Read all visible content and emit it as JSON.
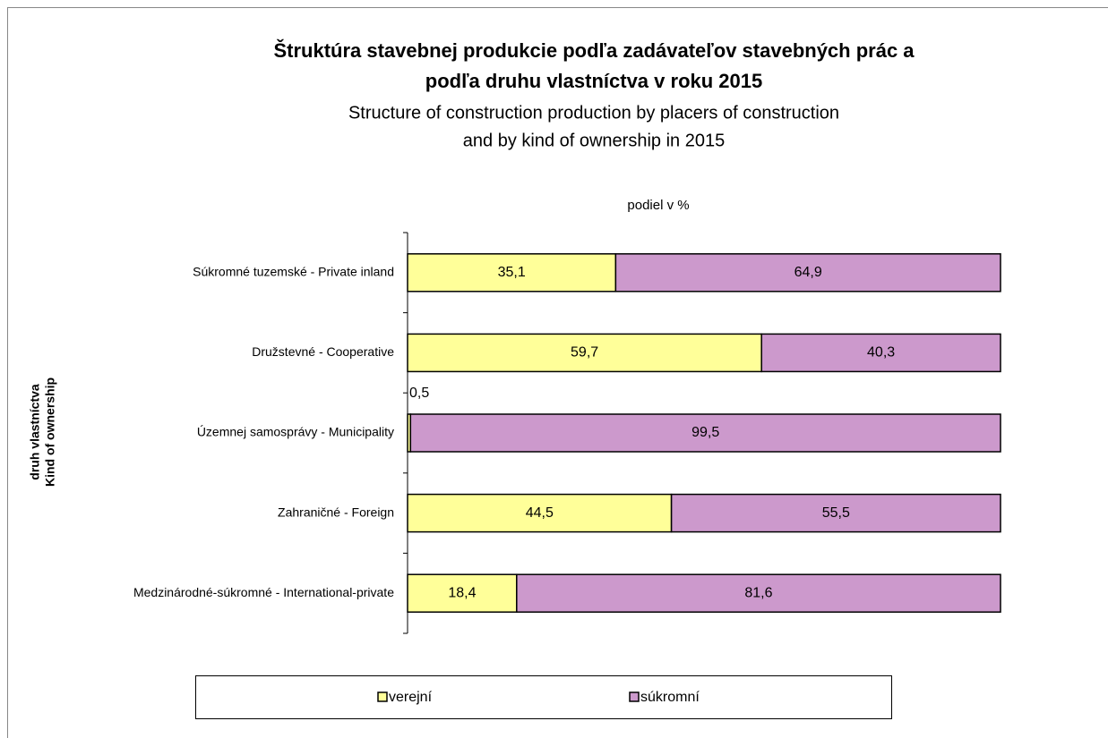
{
  "chart_data": {
    "type": "stacked-bar-horizontal",
    "title": [
      "Štruktúra stavebnej produkcie podľa zadávateľov stavebných prác a",
      "podľa druhu vlastníctva v roku 2015"
    ],
    "subtitle": [
      "Structure of construction production by placers of construction",
      "and by kind of ownership in 2015"
    ],
    "x_label": "podiel v %",
    "y_label": [
      "druh vlastníctva",
      "Kind of ownership"
    ],
    "categories": [
      "Súkromné tuzemské - Private inland",
      "Družstevné - Cooperative",
      "Územnej samosprávy - Municipality",
      "Zahraničné - Foreign",
      "Medzinárodné-súkromné - International-private"
    ],
    "xlim": [
      0,
      100
    ],
    "legend": "bottom",
    "series": [
      {
        "name": "verejní",
        "color": "#ffff99",
        "values": [
          35.1,
          59.7,
          0.5,
          44.5,
          18.4
        ],
        "value_labels": [
          "35,1",
          "59,7",
          "0,5",
          "44,5",
          "18,4"
        ]
      },
      {
        "name": "súkromní",
        "color": "#cc99cc",
        "values": [
          64.9,
          40.3,
          99.5,
          55.5,
          81.6
        ],
        "value_labels": [
          "64,9",
          "40,3",
          "99,5",
          "55,5",
          "81,6"
        ]
      }
    ]
  }
}
